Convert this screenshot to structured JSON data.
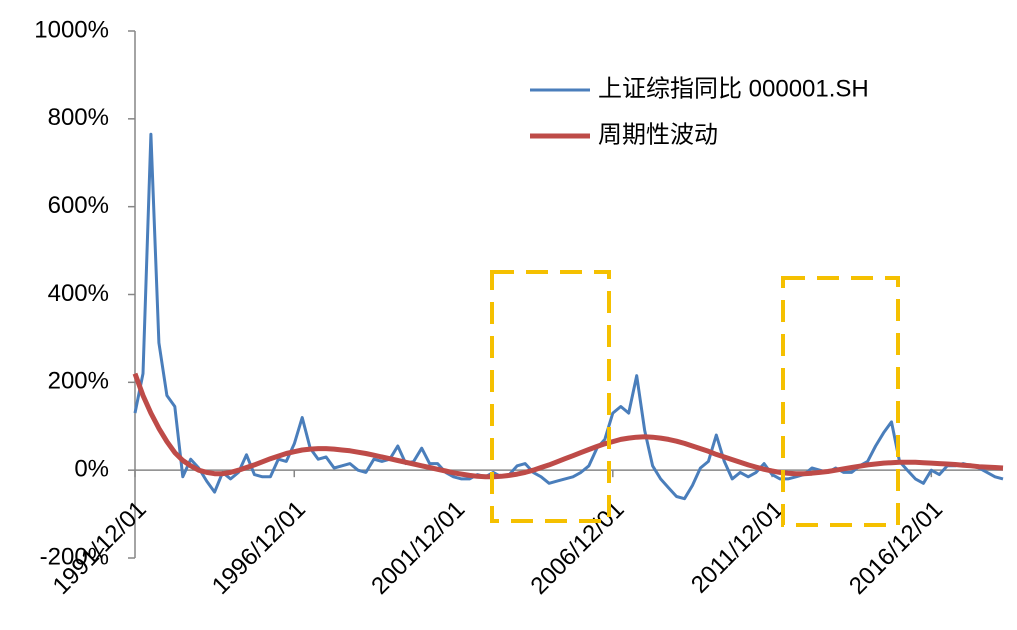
{
  "chart_data": {
    "type": "line",
    "categories": [
      "1991/12/01",
      null,
      null,
      null,
      null,
      null,
      null,
      null,
      null,
      null,
      null,
      null,
      null,
      null,
      null,
      null,
      null,
      null,
      null,
      null,
      "1996/12/01",
      null,
      null,
      null,
      null,
      null,
      null,
      null,
      null,
      null,
      null,
      null,
      null,
      null,
      null,
      null,
      null,
      null,
      null,
      null,
      "2001/12/01",
      null,
      null,
      null,
      null,
      null,
      null,
      null,
      null,
      null,
      null,
      null,
      null,
      null,
      null,
      null,
      null,
      null,
      null,
      null,
      "2006/12/01",
      null,
      null,
      null,
      null,
      null,
      null,
      null,
      null,
      null,
      null,
      null,
      null,
      null,
      null,
      null,
      null,
      null,
      null,
      null,
      "2011/12/01",
      null,
      null,
      null,
      null,
      null,
      null,
      null,
      null,
      null,
      null,
      null,
      null,
      null,
      null,
      null,
      null,
      null,
      null,
      null,
      "2016/12/01",
      null,
      null,
      null,
      null,
      null,
      null,
      null,
      null,
      null
    ],
    "series": [
      {
        "name": "上证综指同比 000001.SH",
        "color": "#4a7ebb",
        "width": 3,
        "values": [
          130,
          220,
          765,
          290,
          170,
          145,
          -15,
          25,
          5,
          -25,
          -50,
          -5,
          -20,
          -5,
          35,
          -10,
          -15,
          -15,
          25,
          20,
          60,
          120,
          50,
          25,
          30,
          5,
          10,
          15,
          0,
          -5,
          25,
          20,
          25,
          55,
          15,
          20,
          50,
          15,
          15,
          -5,
          -15,
          -20,
          -20,
          -10,
          -15,
          -5,
          -15,
          -10,
          10,
          15,
          -5,
          -15,
          -30,
          -25,
          -20,
          -15,
          -5,
          10,
          50,
          70,
          130,
          145,
          130,
          215,
          90,
          10,
          -20,
          -40,
          -60,
          -65,
          -35,
          5,
          20,
          80,
          20,
          -20,
          -5,
          -15,
          -5,
          15,
          -10,
          -20,
          -20,
          -15,
          -10,
          5,
          0,
          -5,
          5,
          -5,
          -5,
          10,
          20,
          55,
          85,
          110,
          20,
          0,
          -20,
          -30,
          0,
          -10,
          10,
          10,
          15,
          10,
          5,
          -5,
          -15,
          -20
        ]
      },
      {
        "name": "周期性波动",
        "color": "#be4b48",
        "width": 5,
        "values": [
          220,
          170,
          130,
          95,
          65,
          40,
          22,
          10,
          0,
          -5,
          -8,
          -8,
          -5,
          0,
          6,
          12,
          19,
          26,
          32,
          38,
          42,
          46,
          48,
          49,
          49,
          48,
          46,
          44,
          41,
          38,
          34,
          30,
          26,
          22,
          18,
          14,
          10,
          6,
          2,
          -2,
          -6,
          -9,
          -12,
          -14,
          -15,
          -15,
          -14,
          -12,
          -9,
          -5,
          0,
          6,
          12,
          19,
          26,
          33,
          40,
          47,
          54,
          60,
          65,
          70,
          73,
          75,
          76,
          75,
          73,
          70,
          66,
          61,
          55,
          49,
          43,
          36,
          30,
          24,
          18,
          12,
          7,
          2,
          -2,
          -5,
          -7,
          -8,
          -8,
          -7,
          -5,
          -3,
          0,
          3,
          6,
          9,
          12,
          14,
          16,
          17,
          18,
          18,
          18,
          17,
          16,
          15,
          14,
          13,
          11,
          10,
          8,
          7,
          6,
          5
        ]
      }
    ],
    "ylim": [
      -200,
      1000
    ],
    "yticks": [
      {
        "value": -200,
        "label": "-200%"
      },
      {
        "value": 0,
        "label": "0%"
      },
      {
        "value": 200,
        "label": "200%"
      },
      {
        "value": 400,
        "label": "400%"
      },
      {
        "value": 600,
        "label": "600%"
      },
      {
        "value": 800,
        "label": "800%"
      },
      {
        "value": 1000,
        "label": "1000%"
      }
    ],
    "grid": false,
    "legend": "upper right"
  }
}
